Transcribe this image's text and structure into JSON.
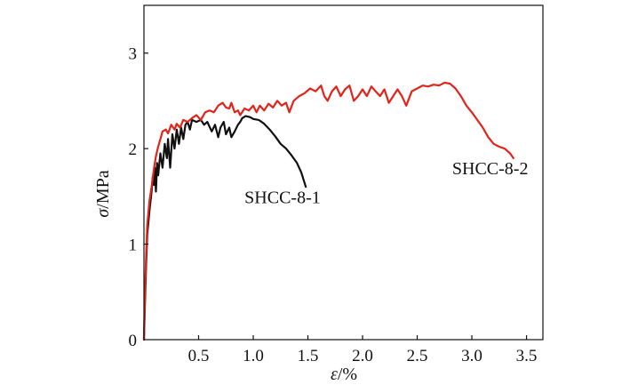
{
  "chart_data": {
    "type": "line",
    "title": "",
    "xlabel": {
      "symbol": "ε",
      "unit": "/%"
    },
    "ylabel": {
      "symbol": "σ",
      "unit": "/MPa"
    },
    "xlim": [
      0,
      3.65
    ],
    "ylim": [
      0,
      3.5
    ],
    "x_ticks": [
      {
        "value": 0.5,
        "label": "0.5"
      },
      {
        "value": 1.0,
        "label": "1.0"
      },
      {
        "value": 1.5,
        "label": "1.5"
      },
      {
        "value": 2.0,
        "label": "2.0"
      },
      {
        "value": 2.5,
        "label": "2.5"
      },
      {
        "value": 3.0,
        "label": "3.0"
      },
      {
        "value": 3.5,
        "label": "3.5"
      }
    ],
    "y_ticks": [
      {
        "value": 1,
        "label": "1"
      },
      {
        "value": 2,
        "label": "2"
      },
      {
        "value": 3,
        "label": "3"
      }
    ],
    "origin_label": "0",
    "grid": false,
    "series": [
      {
        "name": "SHCC-8-1",
        "color": "#111111",
        "label_at": [
          0.92,
          1.43
        ],
        "points": [
          [
            0.0,
            0.0
          ],
          [
            0.01,
            0.4
          ],
          [
            0.02,
            0.8
          ],
          [
            0.03,
            1.1
          ],
          [
            0.05,
            1.35
          ],
          [
            0.07,
            1.55
          ],
          [
            0.08,
            1.7
          ],
          [
            0.09,
            1.62
          ],
          [
            0.1,
            1.8
          ],
          [
            0.11,
            1.55
          ],
          [
            0.12,
            1.85
          ],
          [
            0.13,
            1.72
          ],
          [
            0.15,
            1.95
          ],
          [
            0.17,
            1.8
          ],
          [
            0.19,
            2.05
          ],
          [
            0.21,
            1.9
          ],
          [
            0.22,
            2.1
          ],
          [
            0.24,
            1.8
          ],
          [
            0.26,
            2.15
          ],
          [
            0.28,
            2.0
          ],
          [
            0.3,
            2.2
          ],
          [
            0.32,
            2.05
          ],
          [
            0.34,
            2.22
          ],
          [
            0.36,
            2.1
          ],
          [
            0.38,
            2.25
          ],
          [
            0.4,
            2.28
          ],
          [
            0.42,
            2.2
          ],
          [
            0.44,
            2.3
          ],
          [
            0.48,
            2.28
          ],
          [
            0.52,
            2.3
          ],
          [
            0.55,
            2.25
          ],
          [
            0.58,
            2.28
          ],
          [
            0.62,
            2.18
          ],
          [
            0.65,
            2.25
          ],
          [
            0.68,
            2.12
          ],
          [
            0.7,
            2.22
          ],
          [
            0.73,
            2.28
          ],
          [
            0.75,
            2.15
          ],
          [
            0.78,
            2.22
          ],
          [
            0.8,
            2.12
          ],
          [
            0.83,
            2.18
          ],
          [
            0.86,
            2.25
          ],
          [
            0.88,
            2.28
          ],
          [
            0.9,
            2.32
          ],
          [
            0.93,
            2.34
          ],
          [
            0.97,
            2.33
          ],
          [
            1.0,
            2.31
          ],
          [
            1.05,
            2.3
          ],
          [
            1.1,
            2.26
          ],
          [
            1.15,
            2.2
          ],
          [
            1.2,
            2.13
          ],
          [
            1.25,
            2.05
          ],
          [
            1.3,
            2.0
          ],
          [
            1.35,
            1.93
          ],
          [
            1.4,
            1.85
          ],
          [
            1.44,
            1.75
          ],
          [
            1.48,
            1.6
          ]
        ]
      },
      {
        "name": "SHCC-8-2",
        "color": "#e2231a",
        "label_at": [
          2.82,
          1.73
        ],
        "points": [
          [
            0.0,
            0.0
          ],
          [
            0.01,
            0.5
          ],
          [
            0.02,
            0.9
          ],
          [
            0.03,
            1.2
          ],
          [
            0.05,
            1.45
          ],
          [
            0.07,
            1.6
          ],
          [
            0.09,
            1.78
          ],
          [
            0.11,
            1.92
          ],
          [
            0.13,
            2.02
          ],
          [
            0.15,
            2.1
          ],
          [
            0.17,
            2.18
          ],
          [
            0.2,
            2.2
          ],
          [
            0.22,
            2.16
          ],
          [
            0.25,
            2.25
          ],
          [
            0.28,
            2.2
          ],
          [
            0.3,
            2.26
          ],
          [
            0.33,
            2.22
          ],
          [
            0.36,
            2.3
          ],
          [
            0.4,
            2.28
          ],
          [
            0.44,
            2.32
          ],
          [
            0.48,
            2.35
          ],
          [
            0.52,
            2.3
          ],
          [
            0.56,
            2.38
          ],
          [
            0.6,
            2.4
          ],
          [
            0.64,
            2.38
          ],
          [
            0.68,
            2.45
          ],
          [
            0.72,
            2.48
          ],
          [
            0.75,
            2.43
          ],
          [
            0.78,
            2.42
          ],
          [
            0.8,
            2.48
          ],
          [
            0.83,
            2.38
          ],
          [
            0.86,
            2.4
          ],
          [
            0.88,
            2.35
          ],
          [
            0.92,
            2.42
          ],
          [
            0.96,
            2.4
          ],
          [
            1.0,
            2.45
          ],
          [
            1.03,
            2.38
          ],
          [
            1.06,
            2.45
          ],
          [
            1.1,
            2.4
          ],
          [
            1.14,
            2.47
          ],
          [
            1.18,
            2.43
          ],
          [
            1.22,
            2.5
          ],
          [
            1.26,
            2.45
          ],
          [
            1.3,
            2.48
          ],
          [
            1.33,
            2.38
          ],
          [
            1.37,
            2.5
          ],
          [
            1.42,
            2.55
          ],
          [
            1.47,
            2.58
          ],
          [
            1.52,
            2.63
          ],
          [
            1.57,
            2.6
          ],
          [
            1.62,
            2.66
          ],
          [
            1.65,
            2.55
          ],
          [
            1.68,
            2.5
          ],
          [
            1.72,
            2.6
          ],
          [
            1.76,
            2.65
          ],
          [
            1.8,
            2.55
          ],
          [
            1.84,
            2.62
          ],
          [
            1.88,
            2.66
          ],
          [
            1.92,
            2.5
          ],
          [
            1.96,
            2.55
          ],
          [
            2.0,
            2.62
          ],
          [
            2.04,
            2.55
          ],
          [
            2.08,
            2.65
          ],
          [
            2.12,
            2.6
          ],
          [
            2.16,
            2.55
          ],
          [
            2.2,
            2.62
          ],
          [
            2.24,
            2.48
          ],
          [
            2.28,
            2.55
          ],
          [
            2.32,
            2.62
          ],
          [
            2.36,
            2.55
          ],
          [
            2.4,
            2.45
          ],
          [
            2.45,
            2.6
          ],
          [
            2.5,
            2.63
          ],
          [
            2.55,
            2.66
          ],
          [
            2.6,
            2.65
          ],
          [
            2.65,
            2.67
          ],
          [
            2.7,
            2.66
          ],
          [
            2.75,
            2.69
          ],
          [
            2.8,
            2.68
          ],
          [
            2.85,
            2.63
          ],
          [
            2.9,
            2.55
          ],
          [
            2.95,
            2.45
          ],
          [
            3.0,
            2.38
          ],
          [
            3.05,
            2.3
          ],
          [
            3.1,
            2.22
          ],
          [
            3.15,
            2.12
          ],
          [
            3.2,
            2.05
          ],
          [
            3.25,
            2.02
          ],
          [
            3.3,
            2.0
          ],
          [
            3.35,
            1.95
          ],
          [
            3.38,
            1.9
          ]
        ]
      }
    ]
  }
}
